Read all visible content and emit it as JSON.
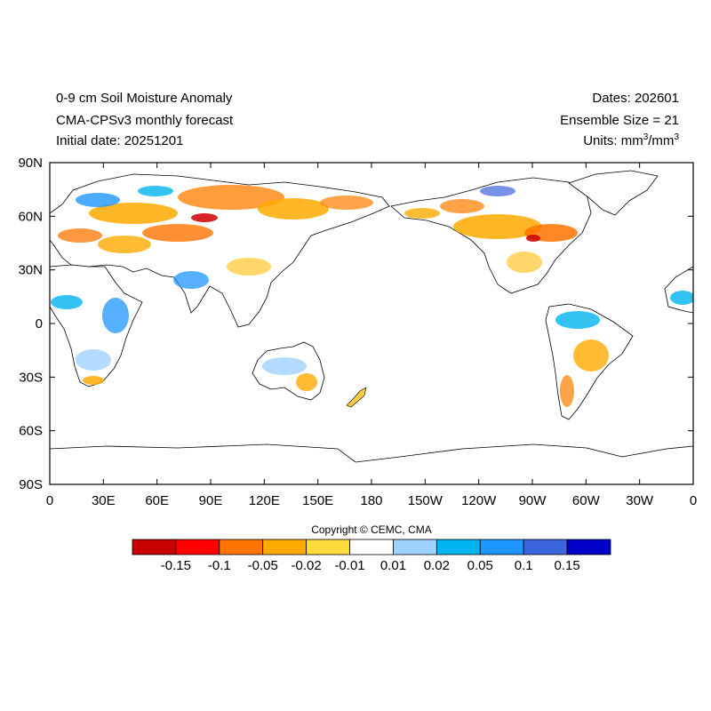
{
  "header": {
    "title_line1": "0-9 cm Soil Moisture Anomaly",
    "title_line2": "CMA-CPSv3 monthly forecast",
    "title_line3": "Initial date: 20251201",
    "dates": "Dates: 202601",
    "ensemble": "Ensemble Size = 21",
    "units_prefix": "Units: mm",
    "units_mid": "/mm",
    "units_sup": "3"
  },
  "axes": {
    "lat_labels": [
      "90N",
      "60N",
      "30N",
      "0",
      "30S",
      "60S",
      "90S"
    ],
    "lon_labels": [
      "0",
      "30E",
      "60E",
      "90E",
      "120E",
      "150E",
      "180",
      "150W",
      "120W",
      "90W",
      "60W",
      "30W",
      "0"
    ]
  },
  "copyright": "Copyright © CEMC, CMA",
  "colorbar": {
    "colors": [
      "#c80000",
      "#ff0000",
      "#ff7300",
      "#ffaa00",
      "#ffdc3c",
      "#ffffff",
      "#a0d2ff",
      "#00b4f0",
      "#1e96ff",
      "#3c64dc",
      "#0000c8"
    ],
    "labels": [
      "-0.15",
      "-0.1",
      "-0.05",
      "-0.02",
      "-0.01",
      "0.01",
      "0.02",
      "0.05",
      "0.1",
      "0.15"
    ]
  }
}
